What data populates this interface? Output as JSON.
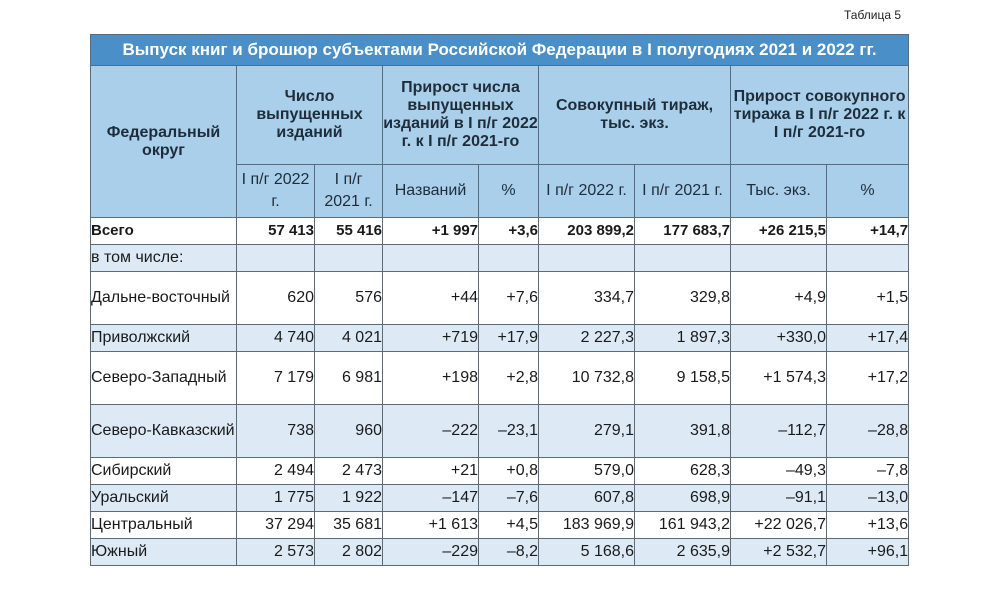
{
  "table_label": "Таблица 5",
  "title": "Выпуск книг и брошюр субъектами Российской Федерации в I полугодиях 2021 и 2022 гг.",
  "headers": {
    "district": "Федеральный округ",
    "titles_count": "Число выпущенных изданий",
    "titles_growth": "Прирост числа выпущенных изданий в I п/г 2022 г. к I п/г 2021-го",
    "circulation": "Совокупный тираж, тыс. экз.",
    "circulation_growth": "Прирост совокупного тиража в I п/г 2022 г. к I п/г 2021-го",
    "sub": {
      "h2022": "I п/г 2022 г.",
      "h2021": "I п/г 2021 г.",
      "names": "Названий",
      "pct": "%",
      "c2022": "I п/г 2022 г.",
      "c2021": "I п/г 2021 г.",
      "thous": "Тыс. экз.",
      "pct2": "%"
    }
  },
  "total": {
    "name": "Всего",
    "v": [
      "57 413",
      "55 416",
      "+1 997",
      "+3,6",
      "203 899,2",
      "177 683,7",
      "+26 215,5",
      "+14,7"
    ]
  },
  "including": "в том числе:",
  "rows": [
    {
      "name": "Дальне-восточный",
      "v": [
        "620",
        "576",
        "+44",
        "+7,6",
        "334,7",
        "329,8",
        "+4,9",
        "+1,5"
      ]
    },
    {
      "name": "Приволжский",
      "v": [
        "4 740",
        "4 021",
        "+719",
        "+17,9",
        "2 227,3",
        "1 897,3",
        "+330,0",
        "+17,4"
      ]
    },
    {
      "name": "Северо-Западный",
      "v": [
        "7 179",
        "6 981",
        "+198",
        "+2,8",
        "10 732,8",
        "9 158,5",
        "+1 574,3",
        "+17,2"
      ]
    },
    {
      "name": "Северо-Кавказский",
      "v": [
        "738",
        "960",
        "–222",
        "–23,1",
        "279,1",
        "391,8",
        "–112,7",
        "–28,8"
      ]
    },
    {
      "name": "Сибирский",
      "v": [
        "2 494",
        "2 473",
        "+21",
        "+0,8",
        "579,0",
        "628,3",
        "–49,3",
        "–7,8"
      ]
    },
    {
      "name": "Уральский",
      "v": [
        "1 775",
        "1 922",
        "–147",
        "–7,6",
        "607,8",
        "698,9",
        "–91,1",
        "–13,0"
      ]
    },
    {
      "name": "Центральный",
      "v": [
        "37 294",
        "35 681",
        "+1 613",
        "+4,5",
        "183 969,9",
        "161 943,2",
        "+22 026,7",
        "+13,6"
      ]
    },
    {
      "name": "Южный",
      "v": [
        "2 573",
        "2 802",
        "–229",
        "–8,2",
        "5 168,6",
        "2 635,9",
        "+2 532,7",
        "+96,1"
      ]
    }
  ]
}
